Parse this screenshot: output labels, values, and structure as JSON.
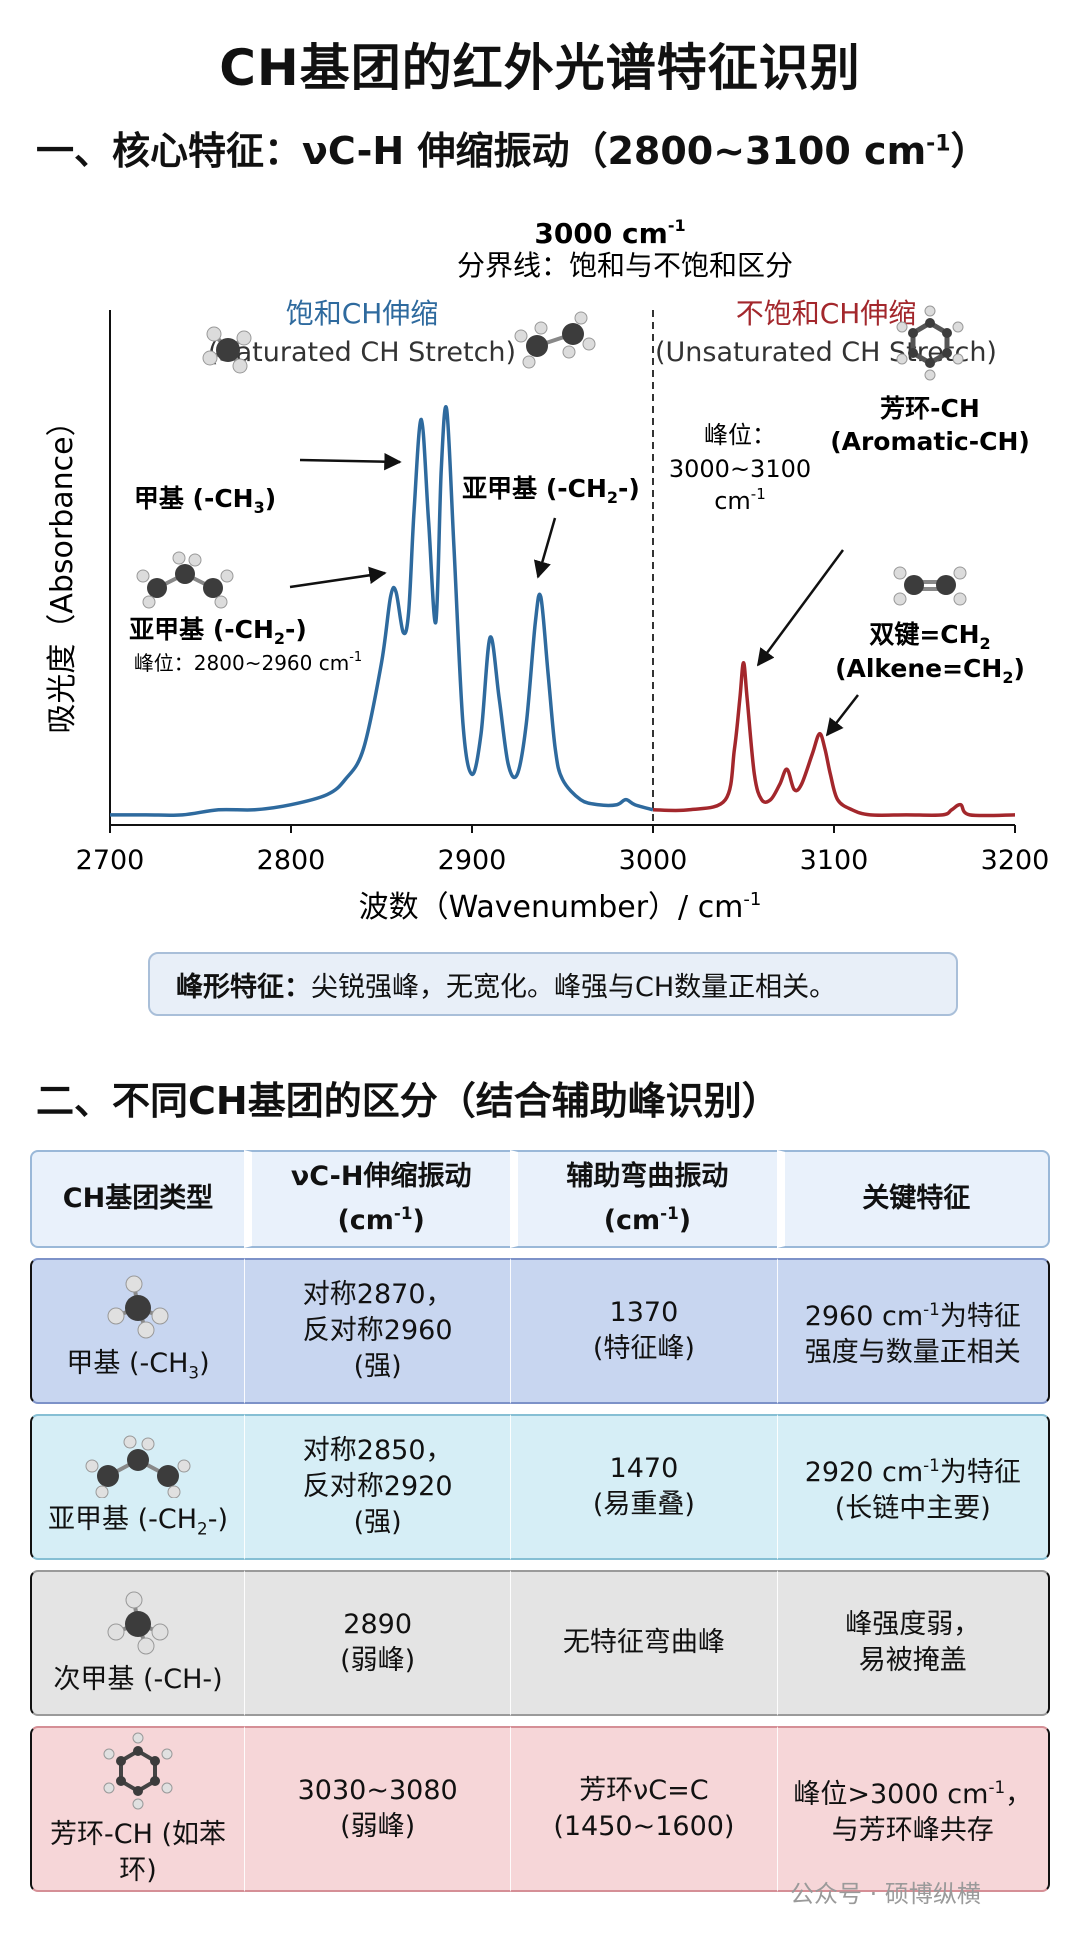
{
  "title": "CH基团的红外光谱特征识别",
  "section1": {
    "prefix": "一、核心特征：νC-H 伸缩振动（2800~3100 cm",
    "suffix": "-1",
    "close": "）"
  },
  "chart_data": {
    "type": "line",
    "xlabel": "波数（Wavenumber）/ cm",
    "xlabel_sup": "-1",
    "ylabel": "吸光度（Absorbance）",
    "xlim": [
      2700,
      3200
    ],
    "xticks": [
      2700,
      2800,
      2900,
      3000,
      3100,
      3200
    ],
    "divider": {
      "x": 3000,
      "label1": "3000 cm",
      "label1_sup": "-1",
      "label2": "分界线：饱和与不饱和区分"
    },
    "colors": {
      "saturated": "#2e6a9e",
      "unsaturated": "#a3272c"
    },
    "series": [
      {
        "name": "饱和CH伸缩",
        "x": [
          2700,
          2720,
          2740,
          2760,
          2780,
          2800,
          2820,
          2830,
          2840,
          2850,
          2855,
          2858,
          2862,
          2865,
          2868,
          2872,
          2876,
          2880,
          2883,
          2886,
          2890,
          2895,
          2900,
          2905,
          2910,
          2915,
          2920,
          2925,
          2930,
          2935,
          2938,
          2942,
          2946,
          2950,
          2960,
          2970,
          2980,
          2985,
          2990,
          3000
        ],
        "y": [
          0.02,
          0.02,
          0.02,
          0.03,
          0.03,
          0.04,
          0.06,
          0.09,
          0.15,
          0.32,
          0.45,
          0.46,
          0.38,
          0.42,
          0.62,
          0.8,
          0.6,
          0.4,
          0.7,
          0.82,
          0.55,
          0.2,
          0.1,
          0.18,
          0.37,
          0.25,
          0.12,
          0.1,
          0.2,
          0.4,
          0.45,
          0.3,
          0.15,
          0.09,
          0.05,
          0.04,
          0.04,
          0.05,
          0.04,
          0.03
        ]
      },
      {
        "name": "不饱和CH伸缩",
        "x": [
          3000,
          3020,
          3040,
          3045,
          3048,
          3050,
          3052,
          3056,
          3060,
          3065,
          3070,
          3074,
          3078,
          3082,
          3088,
          3092,
          3095,
          3098,
          3102,
          3110,
          3120,
          3140,
          3160,
          3165,
          3170,
          3175,
          3200
        ],
        "y": [
          0.03,
          0.03,
          0.05,
          0.15,
          0.25,
          0.32,
          0.25,
          0.1,
          0.05,
          0.05,
          0.08,
          0.11,
          0.07,
          0.08,
          0.14,
          0.18,
          0.15,
          0.1,
          0.05,
          0.03,
          0.02,
          0.02,
          0.02,
          0.03,
          0.04,
          0.02,
          0.02
        ]
      }
    ],
    "region_labels": {
      "saturated_cn": "饱和CH伸缩",
      "saturated_en": "(Saturated CH Stretch)",
      "unsaturated_cn": "不饱和CH伸缩",
      "unsaturated_en": "(Unsaturated CH Stretch)"
    },
    "annotations": {
      "methyl": "甲基 (-CH",
      "methyl_sub": "3",
      "methylene_left": "亚甲基 (-CH",
      "methylene_left_sub": "2",
      "methylene_left_range": "峰位：2800~2960 cm",
      "methylene_right": "亚甲基 (-CH",
      "methylene_right_sub": "2",
      "peak_pos_label": "峰位：",
      "peak_pos_range": "3000~3100",
      "peak_pos_unit": "cm",
      "aromatic_cn": "芳环-CH",
      "aromatic_en": "(Aromatic-CH)",
      "alkene_cn": "双键=CH",
      "alkene_cn_sub": "2",
      "alkene_en": "(Alkene=CH",
      "alkene_en_sub": "2",
      "sup_minus1": "-1",
      "dash_close": "-)",
      "close": ")"
    }
  },
  "note": {
    "bold": "峰形特征：",
    "text": "尖锐强峰，无宽化。峰强与CH数量正相关。"
  },
  "section2": "二、不同CH基团的区分（结合辅助峰识别）",
  "table": {
    "headers": [
      {
        "l1": "CH基团类型",
        "l2": ""
      },
      {
        "l1": "νC-H伸缩振动",
        "l2": "(cm",
        "sup": "-1",
        "tail": ")"
      },
      {
        "l1": "辅助弯曲振动",
        "l2": "(cm",
        "sup": "-1",
        "tail": ")"
      },
      {
        "l1": "关键特征",
        "l2": ""
      }
    ],
    "rows": [
      {
        "name": "甲基 (-CH",
        "sub": "3",
        "tail": ")",
        "stretch": [
          "对称2870，",
          "反对称2960",
          "(强)"
        ],
        "bend": [
          "1370",
          "(特征峰)"
        ],
        "key": [
          "2960 cm",
          "-1",
          "为特征",
          "强度与数量正相关"
        ]
      },
      {
        "name": "亚甲基 (-CH",
        "sub": "2",
        "tail": "-)",
        "stretch": [
          "对称2850，",
          "反对称2920",
          "(强)"
        ],
        "bend": [
          "1470",
          "(易重叠)"
        ],
        "key": [
          "2920 cm",
          "-1",
          "为特征",
          "(长链中主要)"
        ]
      },
      {
        "name": "次甲基 (-CH-)",
        "sub": "",
        "tail": "",
        "stretch": [
          "2890",
          "(弱峰)"
        ],
        "bend": [
          "无特征弯曲峰"
        ],
        "key": [
          "峰强度弱，",
          "易被掩盖"
        ]
      },
      {
        "name": "芳环-CH (如苯环)",
        "sub": "",
        "tail": "",
        "stretch": [
          "3030~3080",
          "(弱峰)"
        ],
        "bend": [
          "芳环νC=C",
          "(1450~1600)"
        ],
        "key": [
          "峰位>3000 cm",
          "-1",
          "，",
          "与芳环峰共存"
        ]
      }
    ]
  },
  "watermark": "公众号 · 硕博纵横"
}
